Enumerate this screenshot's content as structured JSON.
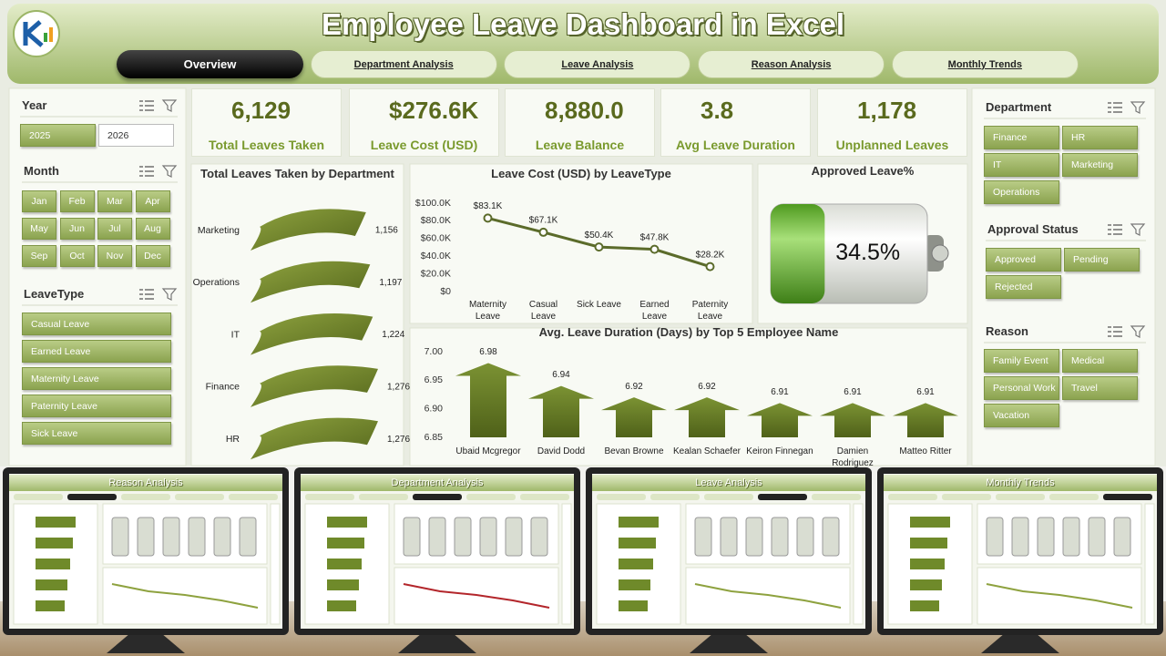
{
  "header": {
    "title": "Employee Leave Dashboard in Excel"
  },
  "tabs": [
    "Overview",
    "Department Analysis",
    "Leave Analysis",
    "Reason Analysis",
    "Monthly Trends"
  ],
  "active_tab": 0,
  "slicers": {
    "left": [
      {
        "title": "Year",
        "items": [
          "2025",
          "2026"
        ],
        "selected": [
          0
        ]
      },
      {
        "title": "Month",
        "items": [
          "Jan",
          "Feb",
          "Mar",
          "Apr",
          "May",
          "Jun",
          "Jul",
          "Aug",
          "Sep",
          "Oct",
          "Nov",
          "Dec"
        ]
      },
      {
        "title": "LeaveType",
        "items": [
          "Casual Leave",
          "Earned Leave",
          "Maternity Leave",
          "Paternity Leave",
          "Sick Leave"
        ]
      }
    ],
    "right": [
      {
        "title": "Department",
        "items": [
          "Finance",
          "HR",
          "IT",
          "Marketing",
          "Operations"
        ]
      },
      {
        "title": "Approval Status",
        "items": [
          "Approved",
          "Pending",
          "Rejected"
        ]
      },
      {
        "title": "Reason",
        "items": [
          "Family Event",
          "Medical",
          "Personal Work",
          "Travel",
          "Vacation"
        ]
      }
    ]
  },
  "kpis": [
    {
      "value": "6,129",
      "label": "Total Leaves Taken"
    },
    {
      "value": "$276.6K",
      "label": "Leave Cost (USD)"
    },
    {
      "value": "8,880.0",
      "label": "Leave Balance"
    },
    {
      "value": "3.8",
      "label": "Avg Leave Duration"
    },
    {
      "value": "1,178",
      "label": "Unplanned Leaves"
    }
  ],
  "chart_data": [
    {
      "type": "bar",
      "orientation": "horizontal",
      "title": "Total Leaves Taken by Department",
      "categories": [
        "Marketing",
        "Operations",
        "IT",
        "Finance",
        "HR"
      ],
      "values": [
        1156,
        1197,
        1224,
        1276,
        1276
      ],
      "value_labels": [
        "1,156",
        "1,197",
        "1,224",
        "1,276",
        "1,276"
      ],
      "color": "#6b7d2c"
    },
    {
      "type": "line",
      "title": "Leave Cost (USD) by LeaveType",
      "categories": [
        "Maternity Leave",
        "Casual Leave",
        "Sick Leave",
        "Earned Leave",
        "Paternity Leave"
      ],
      "values": [
        83100,
        67100,
        50400,
        47800,
        28200
      ],
      "value_labels": [
        "$83.1K",
        "$67.1K",
        "$50.4K",
        "$47.8K",
        "$28.2K"
      ],
      "ylim": [
        0,
        100000
      ],
      "yticks": [
        {
          "value": 0,
          "label": "$0"
        },
        {
          "value": 20000,
          "label": "$20.0K"
        },
        {
          "value": 40000,
          "label": "$40.0K"
        },
        {
          "value": 60000,
          "label": "$60.0K"
        },
        {
          "value": 80000,
          "label": "$80.0K"
        },
        {
          "value": 100000,
          "label": "$100.0K"
        }
      ],
      "grid": false,
      "color": "#5b6b2a"
    },
    {
      "type": "gauge",
      "title": "Approved Leave%",
      "value": 34.5,
      "value_label": "34.5%",
      "ylim": [
        0,
        100
      ],
      "color": "#7dbb3a"
    },
    {
      "type": "bar",
      "orientation": "vertical",
      "title": "Avg. Leave Duration (Days) by Top 5 Employee Name",
      "categories": [
        "Ubaid Mcgregor",
        "David Dodd",
        "Bevan Browne",
        "Kealan Schaefer",
        "Keiron Finnegan",
        "Damien Rodriguez",
        "Matteo Ritter"
      ],
      "values": [
        6.98,
        6.94,
        6.92,
        6.92,
        6.91,
        6.91,
        6.91
      ],
      "ylim": [
        6.85,
        7.0
      ],
      "yticks": [
        6.85,
        {
          "value": 6.9,
          "label": "6.90"
        },
        6.95,
        {
          "value": 7,
          "label": "7.00"
        }
      ],
      "grid": false,
      "color": "#6b7d2c"
    }
  ],
  "previews": [
    {
      "title": "Reason Analysis"
    },
    {
      "title": "Department Analysis"
    },
    {
      "title": "Leave Analysis"
    },
    {
      "title": "Monthly Trends"
    }
  ]
}
